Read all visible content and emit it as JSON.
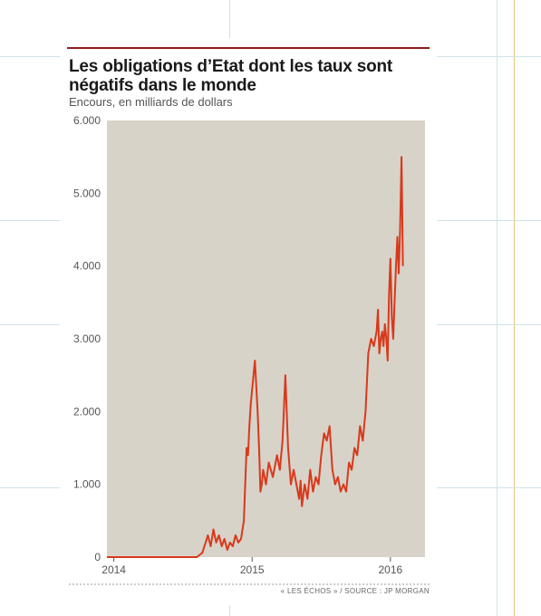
{
  "header": {
    "title": "Les obligations d’Etat dont les taux sont négatifs dans le monde",
    "subtitle": "Encours, en milliards de dollars"
  },
  "footer": {
    "source": "« LES ÉCHOS » / SOURCE : JP MORGAN"
  },
  "colors": {
    "line": "#d8391c",
    "plot_background": "#d8d3c9",
    "title_rule": "#8c1f1f"
  },
  "chart_data": {
    "type": "line",
    "title": "Les obligations d’Etat dont les taux sont négatifs dans le monde",
    "subtitle": "Encours, en milliards de dollars",
    "xlabel": "",
    "ylabel": "",
    "x_ticks": [
      2014,
      2015,
      2016
    ],
    "y_ticks": [
      {
        "value": 0,
        "label": "0"
      },
      {
        "value": 1000,
        "label": "1.000"
      },
      {
        "value": 2000,
        "label": "2.000"
      },
      {
        "value": 3000,
        "label": "3.000"
      },
      {
        "value": 4000,
        "label": "4.000"
      },
      {
        "value": 5000,
        "label": "5.000"
      },
      {
        "value": 6000,
        "label": "6.000"
      }
    ],
    "xlim": [
      2013.95,
      2016.25
    ],
    "ylim": [
      0,
      6000
    ],
    "grid": false,
    "legend": "none",
    "series": [
      {
        "x": [
          2013.95,
          2014.3,
          2014.6,
          2014.62,
          2014.64,
          2014.66,
          2014.68,
          2014.7,
          2014.72,
          2014.74,
          2014.76,
          2014.78,
          2014.8,
          2014.82,
          2014.84,
          2014.86,
          2014.88,
          2014.9,
          2014.92,
          2014.94,
          2014.95,
          2014.96,
          2014.97,
          2014.98,
          2014.99,
          2015.0,
          2015.02,
          2015.04,
          2015.05,
          2015.06,
          2015.07,
          2015.08,
          2015.1,
          2015.12,
          2015.15,
          2015.18,
          2015.2,
          2015.22,
          2015.24,
          2015.26,
          2015.28,
          2015.3,
          2015.32,
          2015.34,
          2015.35,
          2015.36,
          2015.38,
          2015.4,
          2015.42,
          2015.44,
          2015.46,
          2015.48,
          2015.5,
          2015.52,
          2015.54,
          2015.56,
          2015.58,
          2015.6,
          2015.62,
          2015.64,
          2015.66,
          2015.68,
          2015.7,
          2015.72,
          2015.74,
          2015.76,
          2015.78,
          2015.8,
          2015.82,
          2015.84,
          2015.86,
          2015.88,
          2015.9,
          2015.91,
          2015.92,
          2015.93,
          2015.94,
          2015.95,
          2015.96,
          2015.97,
          2015.98,
          2015.99,
          2016.0,
          2016.01,
          2016.02,
          2016.03,
          2016.04,
          2016.05,
          2016.06,
          2016.07,
          2016.08,
          2016.09
        ],
        "values": [
          0,
          0,
          0,
          30,
          60,
          180,
          300,
          150,
          380,
          200,
          300,
          150,
          250,
          100,
          200,
          150,
          300,
          200,
          250,
          500,
          1000,
          1500,
          1400,
          1800,
          2100,
          2300,
          2700,
          2000,
          1500,
          900,
          1000,
          1200,
          1000,
          1300,
          1100,
          1400,
          1200,
          1600,
          2500,
          1500,
          1000,
          1200,
          1000,
          800,
          1050,
          700,
          1000,
          800,
          1200,
          900,
          1100,
          1000,
          1400,
          1700,
          1600,
          1800,
          1200,
          1000,
          1100,
          900,
          1000,
          900,
          1300,
          1200,
          1500,
          1400,
          1800,
          1600,
          2000,
          2800,
          3000,
          2900,
          3100,
          3400,
          2800,
          3000,
          3100,
          2900,
          3200,
          3000,
          2700,
          3600,
          4100,
          3300,
          3000,
          3500,
          4000,
          4400,
          3900,
          4500,
          5500,
          4000
        ]
      }
    ]
  }
}
